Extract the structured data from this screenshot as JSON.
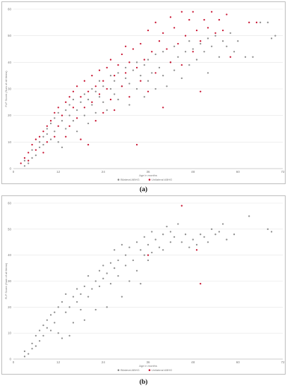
{
  "colors": {
    "gray": "#8c8c8c",
    "red": "#c8102e",
    "grid": "#e4e4e4",
    "axis": "#bfbfbf"
  },
  "captions": {
    "a": "(a)",
    "b": "(b)"
  },
  "chart_data": [
    {
      "type": "scatter",
      "panel": "a",
      "xlabel": "Age in months",
      "ylabel": "FLP Score (Sum of all Items)",
      "xlim": [
        0,
        72
      ],
      "ylim": [
        0,
        60
      ],
      "xticks": [
        0,
        12,
        24,
        36,
        48,
        60,
        72
      ],
      "yticks": [
        0,
        10,
        20,
        30,
        40,
        50,
        60
      ],
      "grid": true,
      "legend": "bottom-center",
      "series": [
        {
          "name": "Bilateral ABHG",
          "color": "#8c8c8c",
          "points": [
            [
              3,
              1
            ],
            [
              3,
              3
            ],
            [
              4,
              2
            ],
            [
              5,
              4
            ],
            [
              5,
              7
            ],
            [
              6,
              5
            ],
            [
              7,
              8
            ],
            [
              7,
              10
            ],
            [
              8,
              9
            ],
            [
              8,
              12
            ],
            [
              9,
              13
            ],
            [
              9,
              15
            ],
            [
              10,
              11
            ],
            [
              10,
              17
            ],
            [
              11,
              14
            ],
            [
              11,
              19
            ],
            [
              12,
              10
            ],
            [
              12,
              21
            ],
            [
              13,
              8
            ],
            [
              13,
              18
            ],
            [
              14,
              22
            ],
            [
              14,
              15
            ],
            [
              15,
              20
            ],
            [
              15,
              24
            ],
            [
              16,
              18
            ],
            [
              16,
              26
            ],
            [
              17,
              14
            ],
            [
              17,
              22
            ],
            [
              18,
              25
            ],
            [
              19,
              20
            ],
            [
              19,
              28
            ],
            [
              20,
              17
            ],
            [
              20,
              26
            ],
            [
              21,
              24
            ],
            [
              21,
              30
            ],
            [
              22,
              21
            ],
            [
              22,
              29
            ],
            [
              23,
              27
            ],
            [
              23,
              33
            ],
            [
              24,
              25
            ],
            [
              24,
              31
            ],
            [
              25,
              22
            ],
            [
              26,
              30
            ],
            [
              26,
              35
            ],
            [
              27,
              28
            ],
            [
              27,
              33
            ],
            [
              28,
              26
            ],
            [
              28,
              36
            ],
            [
              29,
              31
            ],
            [
              30,
              34
            ],
            [
              30,
              38
            ],
            [
              31,
              24
            ],
            [
              31,
              32
            ],
            [
              32,
              37
            ],
            [
              33,
              30
            ],
            [
              33,
              40
            ],
            [
              34,
              35
            ],
            [
              35,
              27
            ],
            [
              35,
              39
            ],
            [
              36,
              41
            ],
            [
              36,
              33
            ],
            [
              37,
              36
            ],
            [
              38,
              43
            ],
            [
              38,
              30
            ],
            [
              39,
              38
            ],
            [
              40,
              44
            ],
            [
              40,
              35
            ],
            [
              41,
              31
            ],
            [
              42,
              40
            ],
            [
              43,
              46
            ],
            [
              43,
              37
            ],
            [
              44,
              42
            ],
            [
              45,
              34
            ],
            [
              46,
              44
            ],
            [
              47,
              48
            ],
            [
              47,
              39
            ],
            [
              48,
              45
            ],
            [
              49,
              41
            ],
            [
              50,
              47
            ],
            [
              51,
              44
            ],
            [
              52,
              49
            ],
            [
              52,
              36
            ],
            [
              53,
              46
            ],
            [
              54,
              50
            ],
            [
              55,
              42
            ],
            [
              56,
              48
            ],
            [
              57,
              46
            ],
            [
              58,
              51
            ],
            [
              59,
              44
            ],
            [
              60,
              48
            ],
            [
              62,
              42
            ],
            [
              64,
              42
            ],
            [
              66,
              55
            ],
            [
              68,
              55
            ],
            [
              69,
              49
            ],
            [
              70,
              50
            ]
          ]
        },
        {
          "name": "Unilateral ABHG",
          "color": "#c8102e",
          "points": [
            [
              2,
              2
            ],
            [
              3,
              4
            ],
            [
              4,
              3
            ],
            [
              4,
              6
            ],
            [
              5,
              9
            ],
            [
              6,
              7
            ],
            [
              6,
              11
            ],
            [
              7,
              12
            ],
            [
              8,
              6
            ],
            [
              8,
              14
            ],
            [
              9,
              16
            ],
            [
              9,
              10
            ],
            [
              10,
              18
            ],
            [
              11,
              12
            ],
            [
              11,
              21
            ],
            [
              12,
              16
            ],
            [
              12,
              23
            ],
            [
              13,
              20
            ],
            [
              14,
              25
            ],
            [
              14,
              12
            ],
            [
              15,
              27
            ],
            [
              15,
              16
            ],
            [
              16,
              23
            ],
            [
              16,
              29
            ],
            [
              17,
              19
            ],
            [
              17,
              31
            ],
            [
              18,
              27
            ],
            [
              18,
              11
            ],
            [
              19,
              33
            ],
            [
              19,
              23
            ],
            [
              20,
              29
            ],
            [
              20,
              9
            ],
            [
              21,
              35
            ],
            [
              21,
              25
            ],
            [
              22,
              31
            ],
            [
              22,
              18
            ],
            [
              23,
              37
            ],
            [
              23,
              28
            ],
            [
              24,
              33
            ],
            [
              24,
              21
            ],
            [
              25,
              38
            ],
            [
              25,
              30
            ],
            [
              26,
              26
            ],
            [
              26,
              41
            ],
            [
              27,
              35
            ],
            [
              27,
              22
            ],
            [
              28,
              39
            ],
            [
              29,
              43
            ],
            [
              29,
              31
            ],
            [
              30,
              36
            ],
            [
              30,
              46
            ],
            [
              31,
              40
            ],
            [
              31,
              27
            ],
            [
              32,
              45
            ],
            [
              33,
              9
            ],
            [
              33,
              38
            ],
            [
              34,
              47
            ],
            [
              34,
              33
            ],
            [
              35,
              41
            ],
            [
              36,
              52
            ],
            [
              36,
              29
            ],
            [
              37,
              44
            ],
            [
              38,
              55
            ],
            [
              38,
              36
            ],
            [
              39,
              48
            ],
            [
              40,
              23
            ],
            [
              40,
              51
            ],
            [
              41,
              45
            ],
            [
              42,
              57
            ],
            [
              42,
              40
            ],
            [
              43,
              53
            ],
            [
              44,
              47
            ],
            [
              45,
              59
            ],
            [
              45,
              39
            ],
            [
              46,
              50
            ],
            [
              47,
              56
            ],
            [
              48,
              44
            ],
            [
              48,
              59
            ],
            [
              49,
              52
            ],
            [
              50,
              29
            ],
            [
              50,
              48
            ],
            [
              51,
              56
            ],
            [
              52,
              53
            ],
            [
              53,
              59
            ],
            [
              54,
              51
            ],
            [
              55,
              56
            ],
            [
              56,
              52
            ],
            [
              57,
              58
            ],
            [
              58,
              42
            ],
            [
              63,
              55
            ],
            [
              65,
              55
            ]
          ]
        }
      ]
    },
    {
      "type": "scatter",
      "panel": "b",
      "xlabel": "Age in months",
      "ylabel": "FLP Score (Sum of all Items)",
      "xlim": [
        0,
        72
      ],
      "ylim": [
        0,
        60
      ],
      "xticks": [
        0,
        12,
        24,
        36,
        48,
        60,
        72
      ],
      "yticks": [
        0,
        10,
        20,
        30,
        40,
        50,
        60
      ],
      "grid": true,
      "legend": "bottom-center",
      "series": [
        {
          "name": "Bilateral ABHG",
          "color": "#8c8c8c",
          "points": [
            [
              3,
              1
            ],
            [
              3,
              3
            ],
            [
              4,
              2
            ],
            [
              5,
              4
            ],
            [
              5,
              6
            ],
            [
              6,
              5
            ],
            [
              6,
              9
            ],
            [
              7,
              7
            ],
            [
              7,
              11
            ],
            [
              8,
              9
            ],
            [
              8,
              13
            ],
            [
              9,
              12
            ],
            [
              9,
              15
            ],
            [
              10,
              11
            ],
            [
              10,
              17
            ],
            [
              11,
              14
            ],
            [
              11,
              18
            ],
            [
              12,
              10
            ],
            [
              12,
              20
            ],
            [
              13,
              8
            ],
            [
              13,
              22
            ],
            [
              14,
              18
            ],
            [
              14,
              25
            ],
            [
              15,
              20
            ],
            [
              15,
              9
            ],
            [
              16,
              24
            ],
            [
              16,
              14
            ],
            [
              17,
              22
            ],
            [
              17,
              27
            ],
            [
              18,
              19
            ],
            [
              18,
              25
            ],
            [
              19,
              28
            ],
            [
              19,
              15
            ],
            [
              20,
              24
            ],
            [
              20,
              32
            ],
            [
              21,
              27
            ],
            [
              22,
              30
            ],
            [
              22,
              19
            ],
            [
              23,
              34
            ],
            [
              23,
              28
            ],
            [
              24,
              31
            ],
            [
              24,
              36
            ],
            [
              25,
              20
            ],
            [
              25,
              33
            ],
            [
              26,
              37
            ],
            [
              26,
              29
            ],
            [
              27,
              35
            ],
            [
              27,
              42
            ],
            [
              28,
              32
            ],
            [
              28,
              38
            ],
            [
              29,
              44
            ],
            [
              29,
              24
            ],
            [
              30,
              36
            ],
            [
              30,
              40
            ],
            [
              31,
              43
            ],
            [
              31,
              30
            ],
            [
              32,
              38
            ],
            [
              33,
              45
            ],
            [
              33,
              34
            ],
            [
              34,
              42
            ],
            [
              34,
              29
            ],
            [
              35,
              47
            ],
            [
              35,
              40
            ],
            [
              36,
              44
            ],
            [
              36,
              38
            ],
            [
              37,
              49
            ],
            [
              37,
              41
            ],
            [
              38,
              46
            ],
            [
              39,
              43
            ],
            [
              40,
              48
            ],
            [
              40,
              42
            ],
            [
              41,
              51
            ],
            [
              42,
              45
            ],
            [
              42,
              49
            ],
            [
              43,
              47
            ],
            [
              44,
              52
            ],
            [
              45,
              45
            ],
            [
              46,
              48
            ],
            [
              47,
              43
            ],
            [
              48,
              46
            ],
            [
              49,
              44
            ],
            [
              50,
              48
            ],
            [
              51,
              47
            ],
            [
              52,
              45
            ],
            [
              53,
              50
            ],
            [
              54,
              48
            ],
            [
              55,
              49
            ],
            [
              56,
              52
            ],
            [
              57,
              46
            ],
            [
              59,
              48
            ],
            [
              63,
              55
            ],
            [
              68,
              50
            ],
            [
              69,
              49
            ]
          ]
        },
        {
          "name": "Unilateral ABHG",
          "color": "#c8102e",
          "points": [
            [
              36,
              40
            ],
            [
              45,
              59
            ],
            [
              49,
              42
            ],
            [
              50,
              29
            ]
          ]
        }
      ]
    }
  ]
}
